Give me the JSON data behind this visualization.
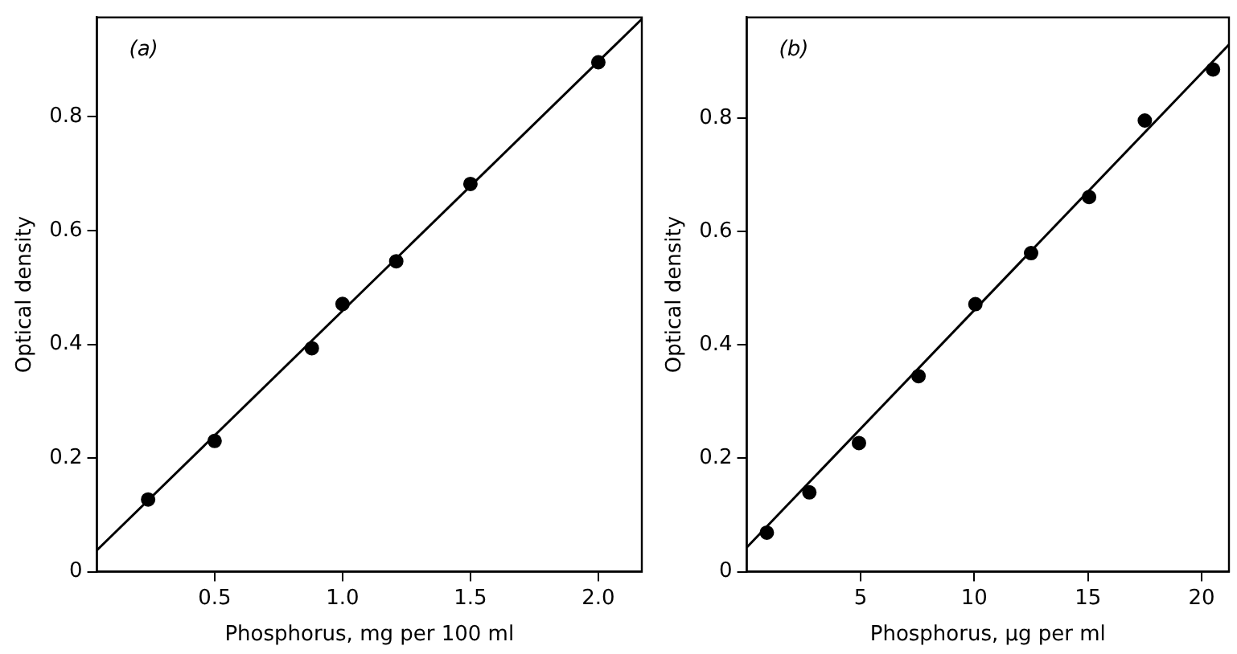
{
  "chart_data": [
    {
      "type": "scatter",
      "xlabel": "Phosphorus, mg per 100 ml",
      "ylabel": "Optical density",
      "annotations": [
        "(a)"
      ],
      "xlim": [
        0.04,
        2.17
      ],
      "ylim": [
        0,
        0.975
      ],
      "xticks": [
        0.5,
        {
          "value": 1,
          "label": "1.0"
        },
        1.5,
        {
          "value": 2,
          "label": "2.0"
        }
      ],
      "yticks": [
        0,
        0.2,
        0.4,
        0.6,
        0.8
      ],
      "grid": false,
      "legend": false,
      "line_style": "solid",
      "series": [
        {
          "type": "scatter",
          "marker": "circle",
          "color": "#000000",
          "x": [
            0.24,
            0.5,
            0.88,
            1.0,
            1.21,
            1.5,
            2.0
          ],
          "values": [
            0.127,
            0.23,
            0.393,
            0.471,
            0.546,
            0.682,
            0.896
          ]
        },
        {
          "type": "line",
          "marker": "none",
          "color": "#000000",
          "x": [
            0.04,
            2.17
          ],
          "values": [
            0.038,
            0.972
          ]
        }
      ]
    },
    {
      "type": "scatter",
      "xlabel": "Phosphorus, µg per ml",
      "ylabel": "Optical density",
      "annotations": [
        "(b)"
      ],
      "xlim": [
        0,
        21.2
      ],
      "ylim": [
        0,
        0.978
      ],
      "xticks": [
        5,
        10,
        15,
        20
      ],
      "yticks": [
        0,
        0.2,
        0.4,
        0.6,
        0.8
      ],
      "grid": false,
      "legend": false,
      "line_style": "solid",
      "series": [
        {
          "type": "scatter",
          "marker": "circle",
          "color": "#000000",
          "x": [
            0.88,
            2.75,
            4.93,
            7.55,
            10.05,
            12.5,
            15.05,
            17.5,
            20.5
          ],
          "values": [
            0.069,
            0.14,
            0.227,
            0.345,
            0.472,
            0.562,
            0.661,
            0.796,
            0.886
          ]
        },
        {
          "type": "line",
          "marker": "none",
          "color": "#000000",
          "x": [
            0,
            21.2
          ],
          "values": [
            0.043,
            0.93
          ]
        }
      ]
    }
  ]
}
